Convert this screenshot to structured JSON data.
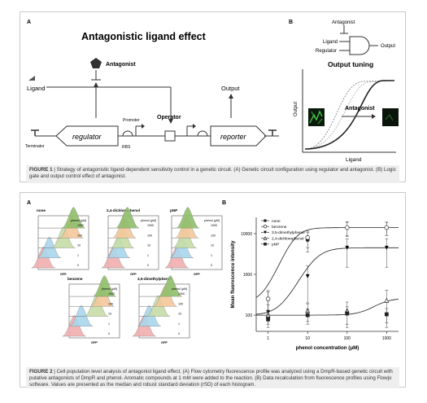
{
  "figure1": {
    "panel_a": {
      "letter": "A",
      "title": "Antagonistic ligand effect",
      "antagonist": "Antagonist",
      "ligand": "Ligand",
      "output": "Output",
      "promoter": "Promoter",
      "operator": "Operator",
      "regulator": "regulator",
      "reporter": "reporter",
      "terminator": "Terminator",
      "rbs": "RBS"
    },
    "panel_b": {
      "letter": "B",
      "antagonist": "Antagonist",
      "ligand": "Ligand",
      "regulator": "Regulator",
      "output": "Output",
      "title": "Output tuning",
      "curve_antagonist": "Antagonist",
      "y_axis": "Output",
      "x_axis": "Ligand"
    },
    "caption": {
      "label": "FIGURE 1",
      "text": " | Strategy of antagonistic ligand-dependent sensitivity control in a genetic circuit. (A) Genetic circuit configuration using regulator and antagonist. (B) Logic gate and output control effect of antagonist."
    }
  },
  "figure2": {
    "panel_a": {
      "letter": "A",
      "x_label": "GFP",
      "legend_header": "phenol (μM)",
      "concentrations": [
        "1000",
        "100",
        "10",
        "1",
        "0"
      ],
      "subplots": [
        "none",
        "2,4-dichlorophenol",
        "pNP",
        "benzene",
        "3,5-dimethylphenol"
      ]
    },
    "panel_b": {
      "letter": "B"
    },
    "caption": {
      "label": "FIGURE 2",
      "text": " | Cell population level analysis of antagonist ligand effect. (A) Flow cytometry fluorescence profile was analyzed using a DmpR-based genetic circuit with putative antagonists of DmpR and phenol. Aromatic compounds at 1 mM were added to the reaction. (B) Data recalculation from fluorescence profiles using Flowjo software. Values are presented as the median and robust standard deviation (rSD) of each histogram."
    }
  },
  "chart_data": {
    "type": "scatter",
    "xlabel": "phenol concentration (μM)",
    "ylabel": "Mean fluorescence intensity",
    "xscale": "log",
    "yscale": "log",
    "xlim": [
      0.5,
      2000
    ],
    "ylim": [
      40,
      25000
    ],
    "x_ticks": [
      "1",
      "10",
      "100",
      "1000"
    ],
    "y_ticks": [
      "100",
      "1000",
      "10000"
    ],
    "legend_position": "top-left",
    "x": [
      1,
      10,
      100,
      1000
    ],
    "series": [
      {
        "name": "none",
        "marker": "circle-filled",
        "values": [
          250,
          7000,
          14000,
          14000
        ],
        "errors": [
          120,
          3500,
          5000,
          5000
        ]
      },
      {
        "name": "benzene",
        "marker": "circle-open",
        "values": [
          250,
          8000,
          14000,
          14000
        ],
        "errors": [
          150,
          3500,
          5500,
          5000
        ]
      },
      {
        "name": "3,5-dimethylphenol",
        "marker": "triangle-down-filled",
        "values": [
          120,
          900,
          4500,
          4500
        ],
        "errors": [
          60,
          700,
          3000,
          3000
        ]
      },
      {
        "name": "2,4-dichlorophenol",
        "marker": "triangle-up-open",
        "values": [
          100,
          130,
          130,
          230
        ],
        "errors": [
          30,
          60,
          80,
          180
        ]
      },
      {
        "name": "pNP",
        "marker": "square-filled",
        "values": [
          80,
          100,
          110,
          105
        ],
        "errors": [
          30,
          40,
          50,
          40
        ]
      }
    ]
  }
}
